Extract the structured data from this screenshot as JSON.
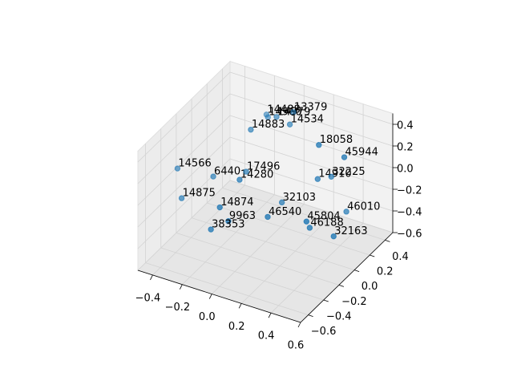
{
  "chart_data": {
    "type": "scatter3d",
    "color": "#1f77b4",
    "point_labels": [
      "14488",
      "14960",
      "14979",
      "13379",
      "14534",
      "14883",
      "18058",
      "45944",
      "14566",
      "6440",
      "14280",
      "17496",
      "14910",
      "32225",
      "14875",
      "14874",
      "32103",
      "46540",
      "9963",
      "38353",
      "46010",
      "45804",
      "46188",
      "32163"
    ],
    "x": [
      -0.15,
      -0.14,
      -0.03,
      -0.02,
      0.06,
      -0.1,
      0.36,
      0.48,
      -0.44,
      -0.25,
      -0.02,
      -0.08,
      0.3,
      0.34,
      -0.36,
      -0.05,
      0.11,
      0.17,
      0.06,
      -0.11,
      0.39,
      0.38,
      0.35,
      0.46
    ],
    "y": [
      0.3,
      0.3,
      0.2,
      0.4,
      0.2,
      0.0,
      0.0,
      0.1,
      -0.3,
      -0.2,
      -0.3,
      -0.1,
      0.1,
      0.2,
      -0.4,
      -0.5,
      0.0,
      -0.3,
      -0.6,
      -0.5,
      0.3,
      -0.2,
      -0.1,
      0.0
    ],
    "z": [
      0.3,
      0.28,
      0.4,
      0.31,
      0.37,
      0.39,
      0.45,
      0.32,
      0.09,
      0.03,
      0.17,
      0.08,
      0.04,
      0.01,
      -0.08,
      0.04,
      -0.19,
      -0.09,
      0.03,
      -0.19,
      -0.36,
      -0.11,
      -0.25,
      -0.35
    ],
    "xlim": [
      -0.5,
      0.6
    ],
    "ylim": [
      -0.7,
      0.5
    ],
    "zlim": [
      -0.6,
      0.5
    ],
    "xticks": [
      {
        "value": -0.4,
        "label": "−0.4"
      },
      {
        "value": -0.2,
        "label": "−0.2"
      },
      {
        "value": 0,
        "label": "0.0"
      },
      0.2,
      0.4,
      0.6
    ],
    "yticks": [
      {
        "value": -0.6,
        "label": "−0.6"
      },
      {
        "value": -0.4,
        "label": "−0.4"
      },
      {
        "value": -0.2,
        "label": "−0.2"
      },
      {
        "value": 0,
        "label": "0.0"
      },
      0.2,
      0.4
    ],
    "zticks": [
      {
        "value": -0.6,
        "label": "−0.6"
      },
      {
        "value": -0.4,
        "label": "−0.4"
      },
      {
        "value": -0.2,
        "label": "−0.2"
      },
      {
        "value": 0,
        "label": "0.0"
      },
      0.2,
      0.4
    ],
    "grid": true
  }
}
